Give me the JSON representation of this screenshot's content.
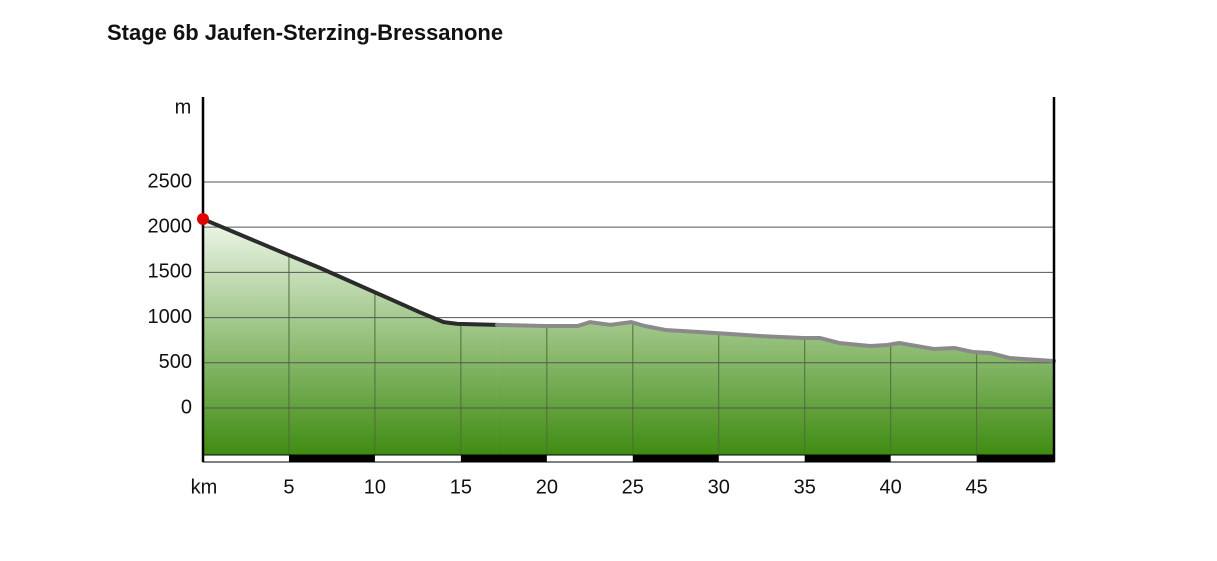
{
  "chart_data": {
    "type": "area",
    "title": "Stage 6b Jaufen-Sterzing-Bressanone",
    "x_label": "km",
    "y_label": "m",
    "xlim": [
      0,
      49.5
    ],
    "ylim": [
      -520,
      3440
    ],
    "xticks": [
      5,
      10,
      15,
      20,
      25,
      30,
      35,
      40,
      45
    ],
    "yticks": [
      0,
      500,
      1000,
      1500,
      2000,
      2500
    ],
    "grid": true,
    "fill_top_color": "#f2f8ee",
    "fill_bottom_color": "#3f8c12",
    "start_marker_color": "#e00000",
    "series": [
      {
        "color": "#2b2b2b",
        "x": [
          0,
          5,
          6.8,
          10,
          12.6,
          14,
          14.8,
          17.1
        ],
        "values": [
          2090,
          1690,
          1550,
          1280,
          1060,
          950,
          930,
          920
        ]
      },
      {
        "color": "#8a8a8a",
        "x": [
          17.1,
          19.9,
          21.8,
          22.5,
          23.7,
          24.9,
          25.7,
          26.9,
          29.8,
          32.4,
          34.9,
          35.9,
          37,
          38.8,
          39.8,
          40.5,
          42.5,
          43.7,
          44.8,
          45.8,
          46.9,
          49.5
        ],
        "values": [
          920,
          907,
          907,
          950,
          920,
          950,
          907,
          863,
          830,
          796,
          774,
          774,
          719,
          686,
          697,
          719,
          653,
          664,
          619,
          608,
          553,
          520
        ]
      }
    ]
  }
}
